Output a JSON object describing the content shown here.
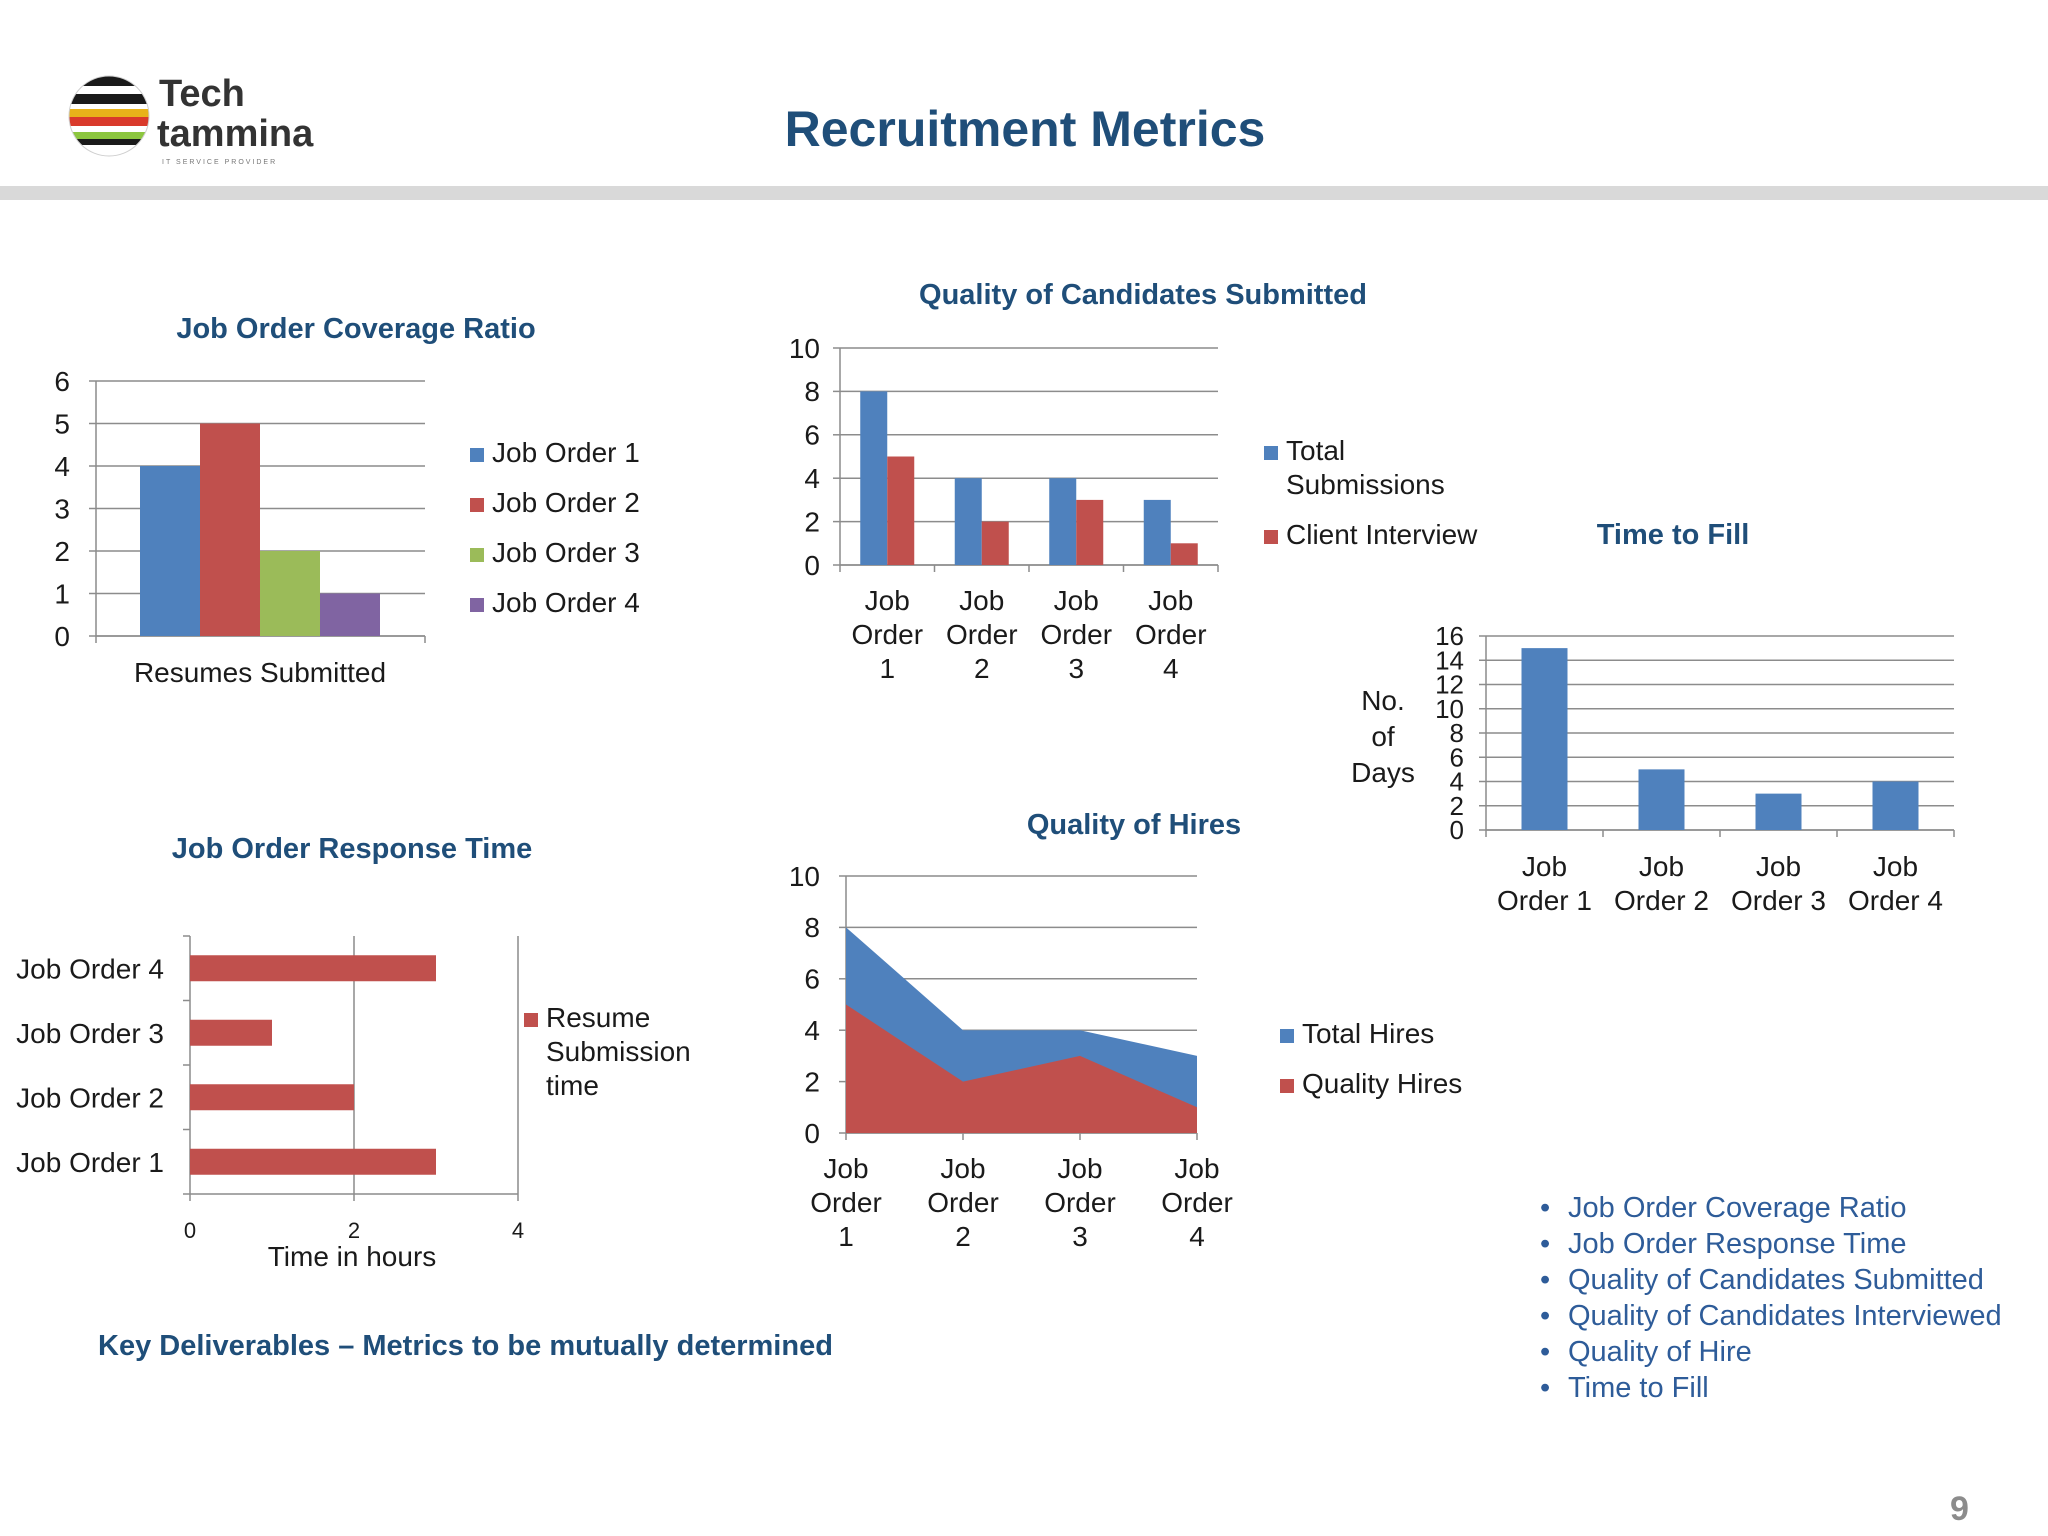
{
  "page": {
    "title": "Recruitment Metrics",
    "logo_line1": "Tech",
    "logo_line2": "tammina",
    "logo_tagline": "IT SERVICE PROVIDER",
    "deliverables": "Key Deliverables – Metrics to be mutually determined",
    "metrics_list": [
      "Job Order Coverage Ratio",
      "Job Order Response Time",
      "Quality of Candidates Submitted",
      "Quality of Candidates Interviewed",
      "Quality of Hire",
      "Time to Fill"
    ],
    "page_number": "9",
    "colors": {
      "title": "#1f4e79",
      "blue": "#4f81bd",
      "red": "#c0504d",
      "green": "#9bbb59",
      "purple": "#8064a2",
      "bullet": "#2e5c99"
    }
  },
  "chart_data": [
    {
      "id": "coverage",
      "type": "bar",
      "title": "Job Order Coverage Ratio",
      "categories": [
        "Resumes Submitted"
      ],
      "series": [
        {
          "name": "Job Order 1",
          "values": [
            4
          ],
          "color": "#4f81bd"
        },
        {
          "name": "Job Order 2",
          "values": [
            5
          ],
          "color": "#c0504d"
        },
        {
          "name": "Job Order 3",
          "values": [
            2
          ],
          "color": "#9bbb59"
        },
        {
          "name": "Job Order 4",
          "values": [
            1
          ],
          "color": "#8064a2"
        }
      ],
      "ylim": [
        0,
        6
      ],
      "yticks": [
        0,
        1,
        2,
        3,
        4,
        5,
        6
      ],
      "grid": true,
      "legend": "right"
    },
    {
      "id": "quality_candidates",
      "type": "bar",
      "title": "Quality of Candidates Submitted",
      "categories": [
        "Job Order 1",
        "Job Order 2",
        "Job Order 3",
        "Job Order 4"
      ],
      "series": [
        {
          "name": "Total Submissions",
          "values": [
            8,
            4,
            4,
            3
          ],
          "color": "#4f81bd"
        },
        {
          "name": "Client Interview",
          "values": [
            5,
            2,
            3,
            1
          ],
          "color": "#c0504d"
        }
      ],
      "ylim": [
        0,
        10
      ],
      "yticks": [
        0,
        2,
        4,
        6,
        8,
        10
      ],
      "grid": true,
      "legend": "right"
    },
    {
      "id": "time_to_fill",
      "type": "bar",
      "title": "Time to Fill",
      "categories": [
        "Job Order 1",
        "Job Order 2",
        "Job Order 3",
        "Job Order 4"
      ],
      "series": [
        {
          "name": "",
          "values": [
            15,
            5,
            3,
            4
          ],
          "color": "#4f81bd"
        }
      ],
      "ylabel": "No. of Days",
      "ylim": [
        0,
        16
      ],
      "yticks": [
        0,
        2,
        4,
        6,
        8,
        10,
        12,
        14,
        16
      ],
      "grid": true,
      "legend": "none"
    },
    {
      "id": "response_time",
      "type": "bar",
      "orientation": "horizontal",
      "title": "Job Order Response Time",
      "categories": [
        "Job Order 1",
        "Job Order 2",
        "Job Order 3",
        "Job Order 4"
      ],
      "series": [
        {
          "name": "Resume Submission time",
          "values": [
            3,
            2,
            1,
            3
          ],
          "color": "#c0504d"
        }
      ],
      "xlabel": "Time in hours",
      "xlim": [
        0,
        4
      ],
      "xticks": [
        0,
        2,
        4
      ],
      "grid": true,
      "legend": "right"
    },
    {
      "id": "quality_hires",
      "type": "area",
      "title": "Quality of Hires",
      "categories": [
        "Job Order 1",
        "Job Order 2",
        "Job Order 3",
        "Job Order 4"
      ],
      "series": [
        {
          "name": "Total Hires",
          "values": [
            8,
            4,
            4,
            3
          ],
          "color": "#4f81bd"
        },
        {
          "name": "Quality Hires",
          "values": [
            5,
            2,
            3,
            1
          ],
          "color": "#c0504d"
        }
      ],
      "ylim": [
        0,
        10
      ],
      "yticks": [
        0,
        2,
        4,
        6,
        8,
        10
      ],
      "grid": true,
      "legend": "right"
    }
  ]
}
